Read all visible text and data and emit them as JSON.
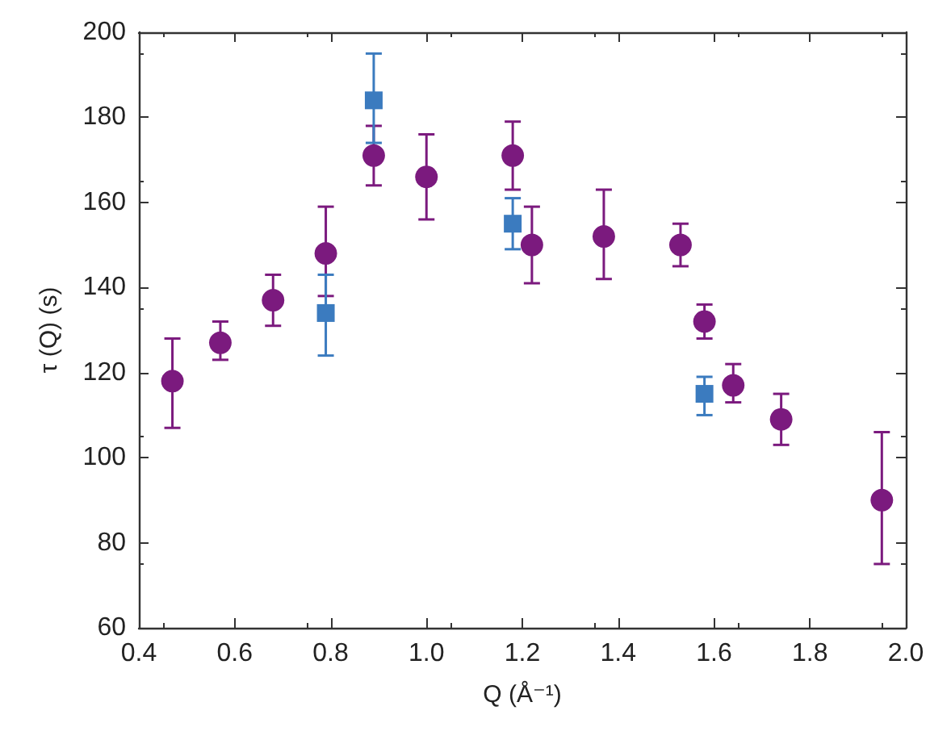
{
  "chart_data": {
    "type": "scatter",
    "xlabel": "Q (Å⁻¹)",
    "ylabel": "τ (Q) (s)",
    "xlim": [
      0.4,
      2.0
    ],
    "ylim": [
      60,
      200
    ],
    "xticks": [
      0.4,
      0.6,
      0.8,
      {
        "value": 1,
        "label": "1.0"
      },
      1.2,
      1.4,
      1.6,
      1.8,
      {
        "value": 2,
        "label": "2.0"
      }
    ],
    "yticks": [
      60,
      80,
      100,
      120,
      140,
      160,
      180,
      200
    ],
    "grid": false,
    "series": [
      {
        "color": "#7b1a7e",
        "marker": "circle",
        "x": [
          0.47,
          0.57,
          0.68,
          0.79,
          0.89,
          1.0,
          1.18,
          1.22,
          1.37,
          1.53,
          1.58,
          1.64,
          1.74,
          1.95
        ],
        "values": [
          118,
          127,
          137,
          148,
          171,
          166,
          171,
          150,
          152,
          150,
          132,
          117,
          109,
          90
        ],
        "errors": [
          [
            107,
            128
          ],
          [
            123,
            132
          ],
          [
            131,
            143
          ],
          [
            138,
            159
          ],
          [
            164,
            178
          ],
          [
            156,
            176
          ],
          [
            163,
            179
          ],
          [
            141,
            159
          ],
          [
            142,
            163
          ],
          [
            145,
            155
          ],
          [
            128,
            136
          ],
          [
            113,
            122
          ],
          [
            103,
            115
          ],
          [
            75,
            106
          ]
        ]
      },
      {
        "color": "#3b7bbf",
        "marker": "square",
        "x": [
          0.79,
          0.89,
          1.18,
          1.58
        ],
        "values": [
          134,
          184,
          155,
          115
        ],
        "errors": [
          [
            124,
            143
          ],
          [
            174,
            195
          ],
          [
            149,
            161
          ],
          [
            110,
            119
          ]
        ]
      }
    ]
  }
}
